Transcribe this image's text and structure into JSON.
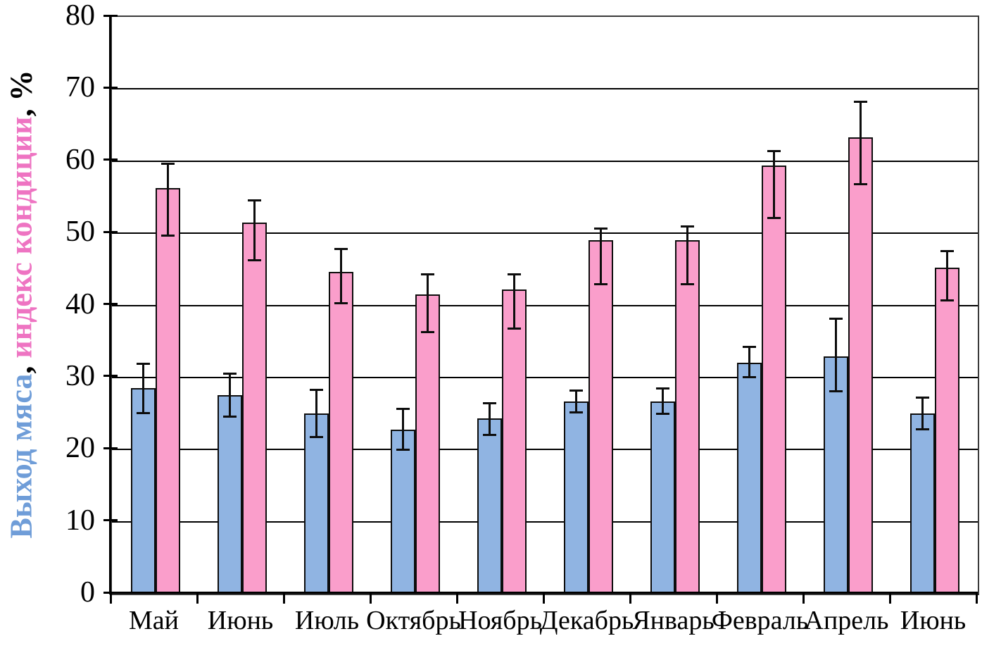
{
  "chart_data": {
    "type": "bar",
    "title": "",
    "xlabel": "",
    "ylabel_text": "Выход мяса, индекс кондиции, %",
    "ylabel_parts": [
      {
        "text": "Выход мяса",
        "color": "#6F9DD8"
      },
      {
        "text": ", ",
        "color": "#000000"
      },
      {
        "text": "индекс кондиции",
        "color": "#EE74C2"
      },
      {
        "text": ", %",
        "color": "#000000"
      }
    ],
    "categories": [
      "Май",
      "Июнь",
      "Июль",
      "Октябрь",
      "Ноябрь",
      "Декабрь",
      "Январь",
      "Февраль",
      "Апрель",
      "Июнь"
    ],
    "series": [
      {
        "name": "Выход мяса",
        "color": "#90B4E2",
        "border_color": "#0d0d0d",
        "values": [
          28.5,
          27.5,
          25.0,
          22.8,
          24.3,
          26.7,
          26.7,
          32.0,
          32.9,
          25.0
        ],
        "err_low": [
          25.1,
          24.6,
          21.7,
          20.0,
          22.0,
          25.2,
          25.0,
          30.0,
          28.1,
          22.8
        ],
        "err_high": [
          31.9,
          30.5,
          28.3,
          25.6,
          26.4,
          28.2,
          28.5,
          34.2,
          38.1,
          27.2
        ]
      },
      {
        "name": "индекс кондиции",
        "color": "#FA9ECB",
        "border_color": "#0d0d0d",
        "values": [
          56.3,
          51.5,
          44.6,
          41.5,
          42.2,
          49.0,
          49.0,
          59.4,
          63.3,
          45.2
        ],
        "err_low": [
          49.7,
          46.3,
          40.3,
          36.3,
          36.8,
          42.9,
          42.9,
          52.1,
          56.8,
          40.7
        ],
        "err_high": [
          59.6,
          54.6,
          47.8,
          44.3,
          44.3,
          50.6,
          50.9,
          61.4,
          68.2,
          47.5
        ]
      }
    ],
    "ylim": [
      0,
      80
    ],
    "yticks": [
      0,
      10,
      20,
      30,
      40,
      50,
      60,
      70,
      80
    ],
    "grid": "horizontal",
    "legend": "none",
    "error_bars": true,
    "axis_color": "#000000"
  }
}
